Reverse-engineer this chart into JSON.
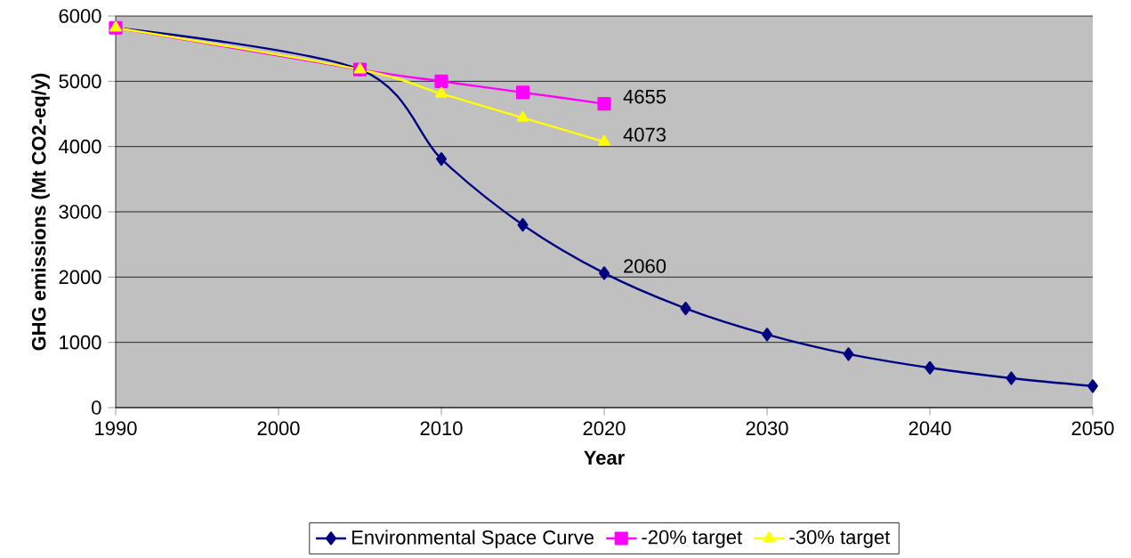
{
  "chart_data": {
    "type": "line",
    "xlabel": "Year",
    "ylabel": "GHG emissions (Mt CO2-eq/y)",
    "x": [
      1990,
      2005,
      2010,
      2015,
      2020,
      2025,
      2030,
      2035,
      2040,
      2045,
      2050
    ],
    "series": [
      {
        "name": "Environmental Space Curve",
        "color": "#000080",
        "marker": "diamond",
        "values": [
          5820,
          5180,
          3810,
          2800,
          2060,
          1520,
          1120,
          820,
          610,
          450,
          330
        ],
        "value_labels": [
          null,
          null,
          null,
          null,
          "2060",
          null,
          null,
          null,
          null,
          null,
          null
        ]
      },
      {
        "name": "-20% target",
        "color": "#ff00ff",
        "marker": "square",
        "x": [
          1990,
          2005,
          2010,
          2015,
          2020
        ],
        "values": [
          5820,
          5180,
          5000,
          4830,
          4655
        ],
        "value_labels": [
          null,
          null,
          null,
          null,
          "4655"
        ]
      },
      {
        "name": "-30% target",
        "color": "#ffff00",
        "marker": "triangle",
        "x": [
          1990,
          2005,
          2010,
          2015,
          2020
        ],
        "values": [
          5820,
          5180,
          4810,
          4440,
          4073
        ],
        "value_labels": [
          null,
          null,
          null,
          null,
          "4073"
        ]
      }
    ],
    "xlim": [
      1990,
      2050
    ],
    "xticks": [
      1990,
      2000,
      2010,
      2020,
      2030,
      2040,
      2050
    ],
    "ylim": [
      0,
      6000
    ],
    "yticks": [
      0,
      1000,
      2000,
      3000,
      4000,
      5000,
      6000
    ],
    "grid": "y",
    "legend": "bottom",
    "line_style": "solid"
  }
}
